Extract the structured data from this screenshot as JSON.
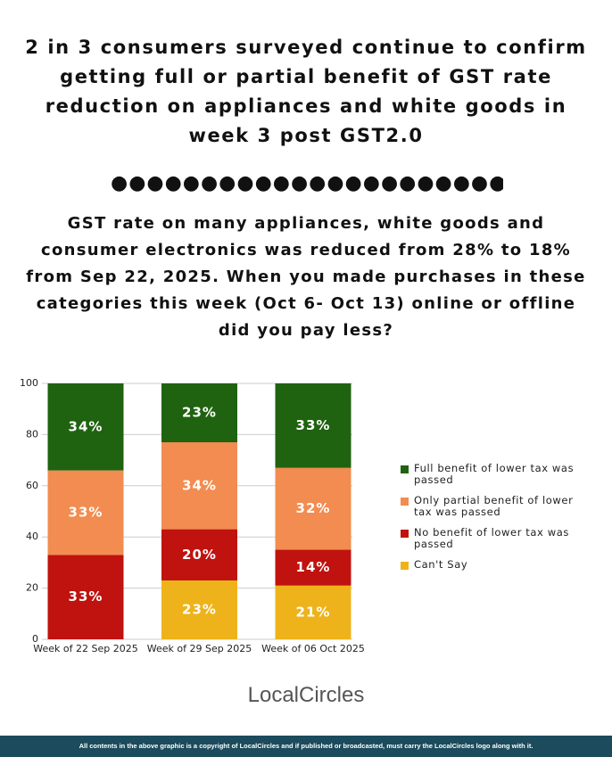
{
  "title": "2 in 3 consumers surveyed continue to confirm getting full or partial benefit of GST rate reduction on appliances and white goods in week 3 post GST2.0",
  "subtitle": "GST rate on many appliances, white goods and consumer electronics was reduced from 28% to 18% from Sep 22, 2025. When you made purchases in these categories this week (Oct 6- Oct 13) online or offline did you pay less?",
  "chart_data": {
    "type": "stacked-bar",
    "categories": [
      "Week of 22 Sep 2025",
      "Week of 29 Sep 2025",
      "Week of 06 Oct 2025"
    ],
    "series": [
      {
        "name": "Can't Say",
        "color": "#eeb31b",
        "values": [
          0,
          23,
          21
        ],
        "value_labels": [
          null,
          "23%",
          "21%"
        ]
      },
      {
        "name": "No benefit of lower tax was passed",
        "color": "#c0120f",
        "values": [
          33,
          20,
          14
        ],
        "value_labels": [
          "33%",
          "20%",
          "14%"
        ]
      },
      {
        "name": "Only partial benefit of lower tax was passed",
        "color": "#f28c50",
        "values": [
          33,
          34,
          32
        ],
        "value_labels": [
          "33%",
          "34%",
          "32%"
        ]
      },
      {
        "name": "Full benefit of lower tax was passed",
        "color": "#1f6310",
        "values": [
          34,
          23,
          33
        ],
        "value_labels": [
          "34%",
          "23%",
          "33%"
        ]
      }
    ],
    "ylim": [
      0,
      100
    ],
    "yticks": [
      0,
      20,
      40,
      60,
      80,
      100
    ],
    "grid": true,
    "legend": "right"
  },
  "logo": "LocalCircles",
  "footer": "All contents in the above graphic is a copyright of LocalCircles and if published or broadcasted, must carry the LocalCircles logo along with it."
}
